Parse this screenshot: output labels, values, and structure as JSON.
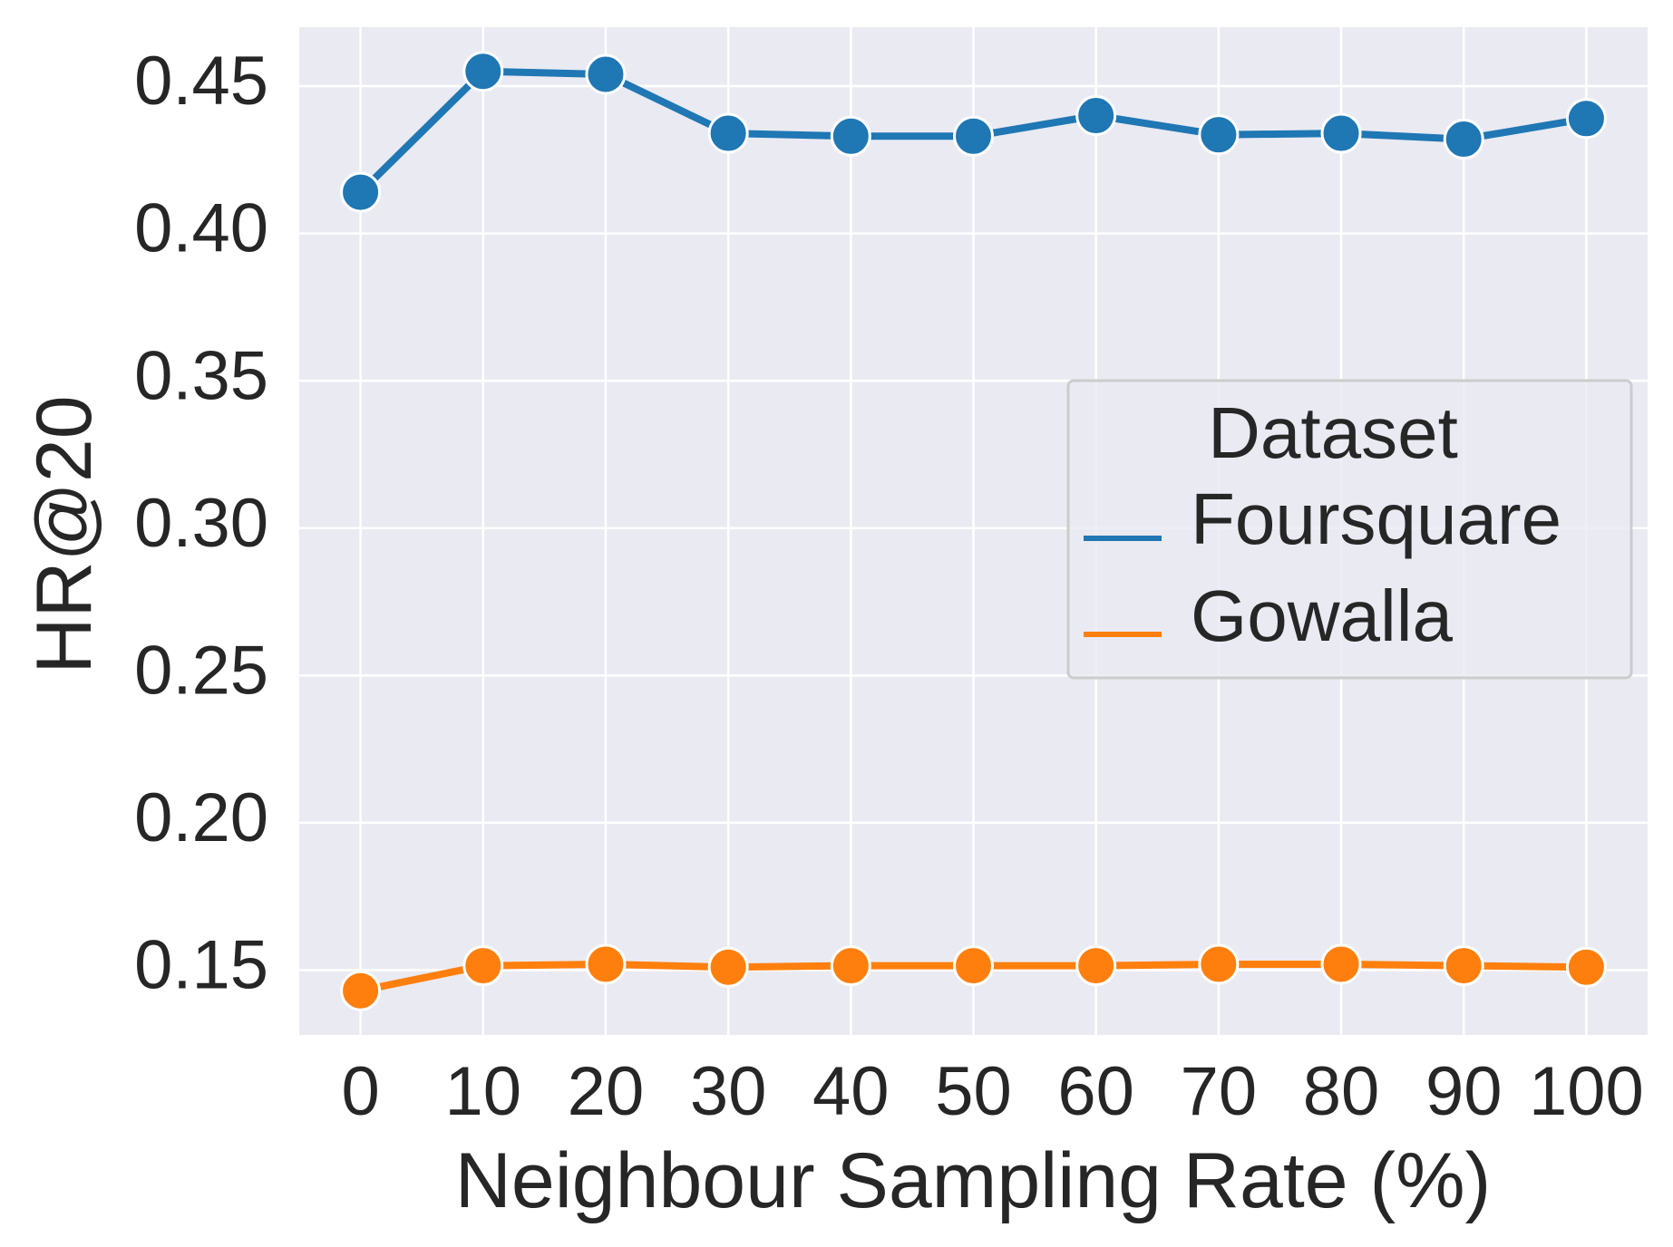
{
  "chart_data": {
    "type": "line",
    "title": "",
    "xlabel": "Neighbour Sampling Rate (%)",
    "ylabel": "HR@20",
    "x": [
      0,
      10,
      20,
      30,
      40,
      50,
      60,
      70,
      80,
      90,
      100
    ],
    "x_tick_labels": [
      "0",
      "10",
      "20",
      "30",
      "40",
      "50",
      "60",
      "70",
      "80",
      "90",
      "100"
    ],
    "ylim": [
      0.128,
      0.47
    ],
    "y_ticks": [
      0.15,
      0.2,
      0.25,
      0.3,
      0.35,
      0.4,
      0.45
    ],
    "y_tick_labels": [
      "0.15",
      "0.20",
      "0.25",
      "0.30",
      "0.35",
      "0.40",
      "0.45"
    ],
    "grid": true,
    "markers": "circle",
    "series": [
      {
        "name": "Foursquare",
        "color": "#1f77b4",
        "values": [
          0.414,
          0.455,
          0.454,
          0.434,
          0.433,
          0.433,
          0.44,
          0.4335,
          0.434,
          0.432,
          0.439
        ]
      },
      {
        "name": "Gowalla",
        "color": "#ff7f0e",
        "values": [
          0.143,
          0.1515,
          0.152,
          0.151,
          0.1515,
          0.1515,
          0.1515,
          0.152,
          0.152,
          0.1515,
          0.151
        ]
      }
    ],
    "legend": {
      "title": "Dataset",
      "placement": "center-right"
    }
  }
}
